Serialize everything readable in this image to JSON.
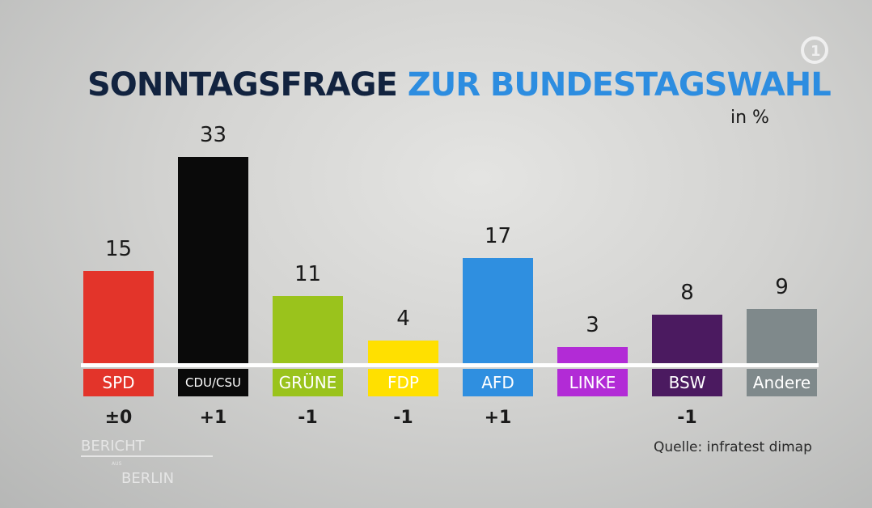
{
  "chart_data": {
    "type": "bar",
    "title_part1": "SONNTAGSFRAGE",
    "title_part2": "ZUR BUNDESTAGSWAHL",
    "unit": "in %",
    "categories": [
      "SPD",
      "CDU/CSU",
      "GRÜNE",
      "FDP",
      "AFD",
      "LINKE",
      "BSW",
      "Andere"
    ],
    "values": [
      15,
      33,
      11,
      4,
      17,
      3,
      8,
      9
    ],
    "value_labels": [
      "15",
      "33",
      "11",
      "4",
      "17",
      "3",
      "8",
      "9"
    ],
    "changes": [
      "±0",
      "+1",
      "-1",
      "-1",
      "+1",
      "",
      "-1",
      ""
    ],
    "colors": [
      "#e3342a",
      "#0a0a0a",
      "#9ac31c",
      "#ffe000",
      "#2f8fe0",
      "#b22bd6",
      "#4b1a60",
      "#7f898b"
    ],
    "ylim": [
      0,
      35
    ],
    "source": "Quelle: infratest dimap"
  },
  "branding": {
    "logo": "1",
    "show_line1": "BERICHT",
    "show_aus": "AUS",
    "show_line2": "BERLIN"
  }
}
